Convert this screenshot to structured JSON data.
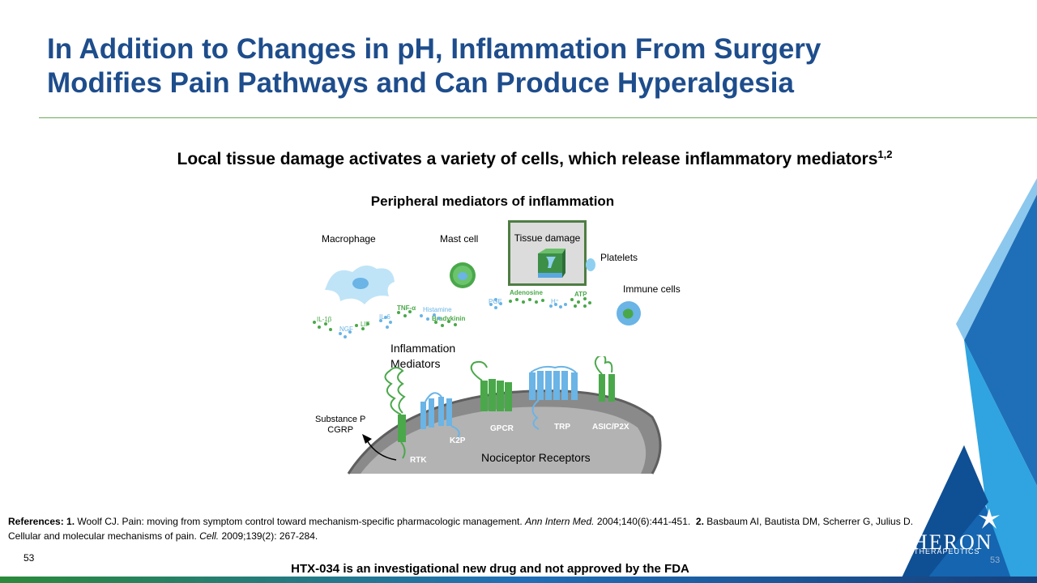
{
  "slide": {
    "title_line1": "In Addition to Changes in pH, Inflammation From Surgery",
    "title_line2": "Modifies Pain Pathways and Can Produce Hyperalgesia",
    "subtitle": "Local tissue damage activates a variety of cells, which release inflammatory mediators",
    "subtitle_sup": "1,2",
    "page_number": "53",
    "disclaimer": "HTX-034 is an investigational new drug and not approved by the FDA"
  },
  "diagram": {
    "title": "Peripheral mediators of inflammation",
    "cells": {
      "macrophage": "Macrophage",
      "mast_cell": "Mast cell",
      "tissue_damage": "Tissue damage",
      "platelets": "Platelets",
      "immune_cells": "Immune  cells"
    },
    "mediators": [
      "IL-1β",
      "NGF",
      "LIF",
      "IL-6",
      "TNF-α",
      "Histamine",
      "Bradykinin",
      "PGE",
      "Adenosine",
      "H⁺",
      "ATP"
    ],
    "inflammation_line1": "Inflammation",
    "inflammation_line2": "Mediators",
    "substance_line1": "Substance P",
    "substance_line2": "CGRP",
    "receptors": [
      "RTK",
      "K2P",
      "GPCR",
      "TRP",
      "ASIC/P2X"
    ],
    "nociceptor_label": "Nociceptor Receptors"
  },
  "references": {
    "label": "References:",
    "ref1_num": "1.",
    "ref1_text": "Woolf CJ. Pain: moving from symptom control toward mechanism-specific pharmacologic management.",
    "ref1_journal": "Ann Intern Med.",
    "ref1_tail": "2004;140(6):441-451.",
    "ref2_num": "2.",
    "ref2_text": "Basbaum AI, Bautista DM, Scherrer G, Julius D.",
    "ref2_line2": "Cellular and molecular mechanisms of pain.",
    "ref2_journal": "Cell.",
    "ref2_tail": "2009;139(2):  267-284."
  },
  "logo": {
    "name": "HERON",
    "sub": "THERAPEUTICS"
  },
  "colors": {
    "title_blue": "#1e4d8c",
    "accent_green": "#4aa84a",
    "receptor_blue": "#6ab4e6",
    "logo_blue": "#1f6fb8"
  }
}
